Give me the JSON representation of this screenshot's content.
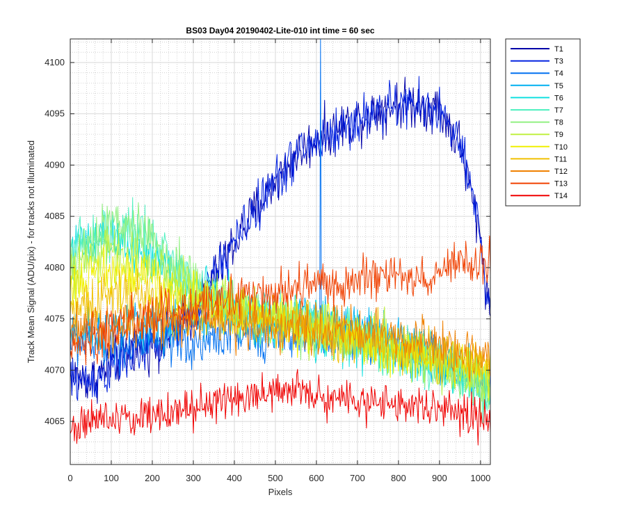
{
  "figure": {
    "title": "BS03 Day04 20190402-Lite-010 int time = 60 sec",
    "xlabel": "Pixels",
    "ylabel": "Track Mean Signal (ADU/pix) - for tracks not illuminated"
  },
  "chart_data": {
    "type": "line",
    "title": "BS03 Day04 20190402-Lite-010 int time = 60 sec",
    "xlabel": "Pixels",
    "ylabel": "Track Mean Signal (ADU/pix) - for tracks not illuminated",
    "xlim": [
      0,
      1024
    ],
    "ylim": [
      4060.8,
      4102.3
    ],
    "xticks": [
      0,
      100,
      200,
      300,
      400,
      500,
      600,
      700,
      800,
      900,
      1000
    ],
    "yticks": [
      4065,
      4070,
      4075,
      4080,
      4085,
      4090,
      4095,
      4100
    ],
    "grid": "major and minor",
    "legend_position": "outside top-right",
    "x_sample_points": [
      0,
      50,
      100,
      150,
      200,
      250,
      300,
      350,
      400,
      450,
      500,
      550,
      600,
      650,
      700,
      750,
      800,
      850,
      900,
      950,
      1000,
      1024
    ],
    "series": [
      {
        "name": "T1",
        "color": "#0000a8",
        "noise": 1.8,
        "values": [
          4069.5,
          4069,
          4070.5,
          4072,
          4072.5,
          4073.5,
          4075.5,
          4079,
          4082.5,
          4085.5,
          4088.5,
          4091,
          4092.5,
          4093.5,
          4094.5,
          4095.5,
          4096,
          4096,
          4095.5,
          4092,
          4083,
          4075
        ]
      },
      {
        "name": "T3",
        "color": "#0020e0",
        "noise": 1.8,
        "values": [
          4069,
          4069,
          4070,
          4071.5,
          4072.5,
          4073.5,
          4075.5,
          4079,
          4082.5,
          4085.5,
          4088.5,
          4091,
          4092.3,
          4093.3,
          4094.3,
          4095.3,
          4095.8,
          4095.8,
          4095.3,
          4092,
          4083,
          4075
        ]
      },
      {
        "name": "T4",
        "color": "#0070f0",
        "noise": 1.8,
        "spike_x": 610,
        "spike_y": 4102.3,
        "values": [
          4073,
          4072.5,
          4072.5,
          4072.5,
          4072.5,
          4072.5,
          4072.5,
          4073,
          4073.5,
          4073.5,
          4073.5,
          4073.5,
          4073,
          4073,
          4073,
          4073,
          4072.5,
          4072,
          4071,
          4070,
          4069.5,
          4069
        ]
      },
      {
        "name": "T5",
        "color": "#00b0f0",
        "noise": 1.8,
        "values": [
          4073,
          4073.5,
          4074,
          4074.5,
          4074.5,
          4074.5,
          4075,
          4075,
          4075,
          4075,
          4075,
          4075,
          4074.5,
          4074.5,
          4074,
          4073.5,
          4073,
          4072,
          4071,
          4070,
          4069.5,
          4069
        ]
      },
      {
        "name": "T6",
        "color": "#10e0e0",
        "noise": 2.0,
        "values": [
          4082,
          4082,
          4082.5,
          4082,
          4081,
          4079.5,
          4078,
          4077,
          4076,
          4075.5,
          4075,
          4074.5,
          4074,
          4073.5,
          4073,
          4072.5,
          4072,
          4071.5,
          4070.5,
          4069.5,
          4068.5,
          4068
        ]
      },
      {
        "name": "T7",
        "color": "#50f0c0",
        "noise": 2.0,
        "values": [
          4082,
          4082.5,
          4083,
          4083.5,
          4082.5,
          4080.5,
          4078.5,
          4077,
          4076,
          4075.5,
          4075,
          4074.5,
          4074,
          4073.5,
          4073,
          4072.5,
          4072,
          4071.5,
          4070.5,
          4069.5,
          4068.5,
          4068
        ]
      },
      {
        "name": "T8",
        "color": "#90f080",
        "noise": 2.0,
        "values": [
          4080.5,
          4082.5,
          4084.5,
          4084,
          4082.5,
          4080.5,
          4078.5,
          4077,
          4076,
          4075.5,
          4075,
          4074.5,
          4074,
          4073.5,
          4073,
          4072.5,
          4072,
          4071.5,
          4070.5,
          4069.5,
          4068.5,
          4068
        ]
      },
      {
        "name": "T9",
        "color": "#c0f040",
        "noise": 2.0,
        "values": [
          4079.5,
          4080.5,
          4081.5,
          4081,
          4080,
          4079,
          4078,
          4077,
          4076,
          4075.5,
          4075,
          4074.5,
          4074,
          4073.5,
          4073,
          4072.5,
          4072,
          4071.5,
          4070.5,
          4069.5,
          4069,
          4069
        ]
      },
      {
        "name": "T10",
        "color": "#f0f000",
        "noise": 1.9,
        "values": [
          4078,
          4079,
          4079.5,
          4079,
          4078.5,
          4077.5,
          4077,
          4076.5,
          4076,
          4075.5,
          4075,
          4074.5,
          4074,
          4073.5,
          4073,
          4072.5,
          4072,
          4071.5,
          4071,
          4070.5,
          4070,
          4070
        ]
      },
      {
        "name": "T11",
        "color": "#f0c000",
        "noise": 1.9,
        "values": [
          4076,
          4076.5,
          4077,
          4077,
          4076.5,
          4076,
          4075.5,
          4075.5,
          4075,
          4075,
          4074.5,
          4074.5,
          4074,
          4073.5,
          4073,
          4073,
          4072.5,
          4072,
          4071.5,
          4071,
          4070.5,
          4070.5
        ]
      },
      {
        "name": "T12",
        "color": "#f08000",
        "noise": 1.8,
        "values": [
          4073.5,
          4074,
          4074,
          4074.5,
          4074.5,
          4074.5,
          4074.5,
          4074.5,
          4074.5,
          4074.5,
          4074.5,
          4074,
          4074,
          4074,
          4073.5,
          4073.5,
          4073,
          4073,
          4072.5,
          4072,
          4071.5,
          4071.5
        ]
      },
      {
        "name": "T13",
        "color": "#f04000",
        "noise": 1.8,
        "values": [
          4072,
          4073,
          4074,
          4074.5,
          4075,
          4075.5,
          4076,
          4076.5,
          4077,
          4077.5,
          4077.5,
          4078,
          4078,
          4078.5,
          4079,
          4079,
          4079,
          4079,
          4079.5,
          4080,
          4080.5,
          4081
        ]
      },
      {
        "name": "T14",
        "color": "#f00000",
        "noise": 1.5,
        "values": [
          4064.5,
          4065,
          4065.3,
          4065.5,
          4065.8,
          4066,
          4066.3,
          4066.8,
          4067.3,
          4067.5,
          4067.8,
          4068,
          4067.5,
          4067.3,
          4067,
          4066.8,
          4066.5,
          4066.3,
          4066,
          4065.8,
          4065.3,
          4065
        ]
      }
    ]
  }
}
